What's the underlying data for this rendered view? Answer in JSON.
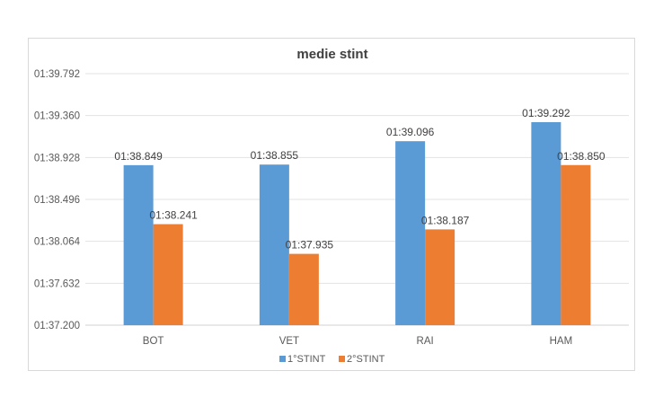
{
  "chart_data": {
    "type": "bar",
    "title": "medie stint",
    "categories": [
      "BOT",
      "VET",
      "RAI",
      "HAM"
    ],
    "series": [
      {
        "name": "1°STINT",
        "color": "#5b9bd5",
        "values": [
          98.849,
          98.855,
          99.096,
          99.292
        ],
        "labels": [
          "01:38.849",
          "01:38.855",
          "01:39.096",
          "01:39.292"
        ]
      },
      {
        "name": "2°STINT",
        "color": "#ed7d31",
        "values": [
          98.241,
          97.935,
          98.187,
          98.85
        ],
        "labels": [
          "01:38.241",
          "01:37.935",
          "01:38.187",
          "01:38.850"
        ]
      }
    ],
    "ylim": [
      97.2,
      99.792
    ],
    "yticks": [
      97.2,
      97.632,
      98.064,
      98.496,
      98.928,
      99.36,
      99.792
    ],
    "ytick_labels": [
      "01:37.200",
      "01:37.632",
      "01:38.064",
      "01:38.496",
      "01:38.928",
      "01:39.360",
      "01:39.792"
    ],
    "grid": true,
    "legend_position": "bottom",
    "xlabel": "",
    "ylabel": ""
  }
}
